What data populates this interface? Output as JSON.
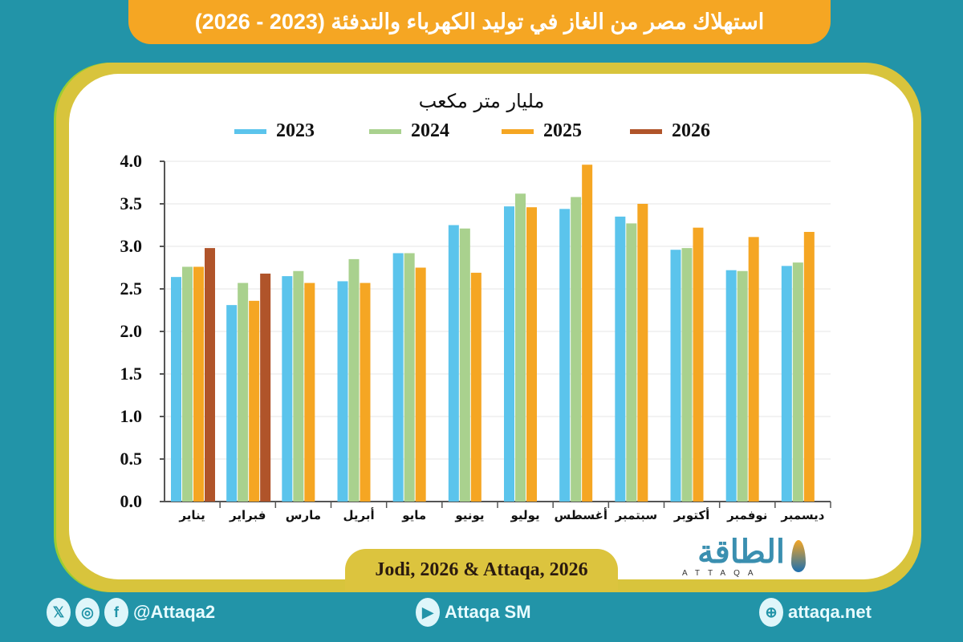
{
  "title": "استهلاك مصر من الغاز في توليد الكهرباء والتدفئة (2023 - 2026)",
  "source": "Jodi, 2026 & Attaqa, 2026",
  "logo": {
    "text": "الطاقة",
    "sub": "ATTAQA"
  },
  "footer": {
    "social_handle": "@Attaqa2",
    "youtube": "Attaqa SM",
    "website": "attaqa.net",
    "icons": [
      "x-icon",
      "instagram-icon",
      "facebook-icon",
      "youtube-icon",
      "globe-icon"
    ]
  },
  "colors": {
    "background": "#2294a8",
    "title_pill": "#f5a623",
    "frame": "#d8c43c"
  },
  "chart_data": {
    "type": "bar",
    "ylabel": "مليار متر مكعب",
    "ylim": [
      0,
      4.0
    ],
    "yticks": [
      "0.0",
      "0.5",
      "1.0",
      "1.5",
      "2.0",
      "2.5",
      "3.0",
      "3.5",
      "4.0"
    ],
    "grid": true,
    "legend_position": "top",
    "categories": [
      "يناير",
      "فبراير",
      "مارس",
      "أبريل",
      "مايو",
      "يونيو",
      "يوليو",
      "أغسطس",
      "سبتمبر",
      "أكتوبر",
      "نوفمبر",
      "ديسمبر"
    ],
    "series": [
      {
        "name": "2023",
        "color": "#5bc4ec",
        "values": [
          2.64,
          2.31,
          2.65,
          2.59,
          2.92,
          3.25,
          3.47,
          3.44,
          3.35,
          2.96,
          2.72,
          2.77
        ]
      },
      {
        "name": "2024",
        "color": "#a9d18e",
        "values": [
          2.76,
          2.57,
          2.71,
          2.85,
          2.92,
          3.21,
          3.62,
          3.58,
          3.27,
          2.98,
          2.71,
          2.81
        ]
      },
      {
        "name": "2025",
        "color": "#f5a623",
        "values": [
          2.76,
          2.36,
          2.57,
          2.57,
          2.75,
          2.69,
          3.46,
          3.96,
          3.5,
          3.22,
          3.11,
          3.17
        ]
      },
      {
        "name": "2026",
        "color": "#b0542a",
        "values": [
          2.98,
          2.68,
          null,
          null,
          null,
          null,
          null,
          null,
          null,
          null,
          null,
          null
        ]
      }
    ]
  }
}
